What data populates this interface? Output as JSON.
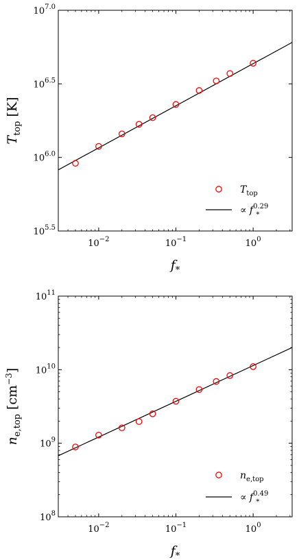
{
  "chart_data": [
    {
      "type": "scatter",
      "id": "temperature",
      "xlabel": {
        "base": "f",
        "sub": "*"
      },
      "ylabel": {
        "base": "T",
        "sub": "top",
        "unit": "[K]"
      },
      "x_scale": "log",
      "y_scale": "log",
      "xlim": [
        0.003,
        3.2
      ],
      "ylim": [
        316227.77,
        10000000
      ],
      "x_ticks": [
        {
          "value": 0.01,
          "base": "10",
          "exp": "−2"
        },
        {
          "value": 0.1,
          "base": "10",
          "exp": "−1"
        },
        {
          "value": 1,
          "base": "10",
          "exp": "0"
        }
      ],
      "y_ticks": [
        {
          "value": 316227.77,
          "base": "10",
          "exp": "5.5"
        },
        {
          "value": 1000000,
          "base": "10",
          "exp": "6.0"
        },
        {
          "value": 3162277.66,
          "base": "10",
          "exp": "6.5"
        },
        {
          "value": 10000000,
          "base": "10",
          "exp": "7.0"
        }
      ],
      "series": [
        {
          "kind": "points",
          "legend": {
            "base": "T",
            "sub": "top",
            "sup": ""
          },
          "x": [
            0.005,
            0.01,
            0.02,
            0.0333,
            0.05,
            0.1,
            0.2,
            0.333,
            0.5,
            1.0
          ],
          "y": [
            912000,
            1188000,
            1445000,
            1679000,
            1862000,
            2291000,
            2851000,
            3311000,
            3715000,
            4365000
          ]
        },
        {
          "kind": "line",
          "legend": {
            "base": "∝ f",
            "sub": "*",
            "sup": "0.29"
          },
          "x": [
            0.003,
            3.2
          ],
          "y": [
            823200,
            6049000
          ]
        }
      ],
      "legend_position": "bottom-right",
      "marker_color": "#ff0000",
      "line_color": "#000000",
      "grid": false
    },
    {
      "type": "scatter",
      "id": "density",
      "xlabel": {
        "base": "f",
        "sub": "*"
      },
      "ylabel": {
        "base": "n",
        "sub": "e,top",
        "unit": "[cm",
        "unit_sup": "−3",
        "unit_end": "]"
      },
      "x_scale": "log",
      "y_scale": "log",
      "xlim": [
        0.003,
        3.2
      ],
      "ylim": [
        100000000,
        100000000000
      ],
      "x_ticks": [
        {
          "value": 0.01,
          "base": "10",
          "exp": "−2"
        },
        {
          "value": 0.1,
          "base": "10",
          "exp": "−1"
        },
        {
          "value": 1,
          "base": "10",
          "exp": "0"
        }
      ],
      "y_ticks": [
        {
          "value": 100000000,
          "base": "10",
          "exp": "8"
        },
        {
          "value": 1000000000,
          "base": "10",
          "exp": "9"
        },
        {
          "value": 10000000000,
          "base": "10",
          "exp": "10"
        },
        {
          "value": 100000000000,
          "base": "10",
          "exp": "11"
        }
      ],
      "series": [
        {
          "kind": "points",
          "legend": {
            "base": "n",
            "sub": "e,top",
            "sup": ""
          },
          "x": [
            0.005,
            0.01,
            0.02,
            0.0333,
            0.05,
            0.1,
            0.2,
            0.333,
            0.5,
            1.0
          ],
          "y": [
            890000000,
            1290000000,
            1620000000,
            1970000000,
            2510000000,
            3720000000,
            5370000000,
            6920000000,
            8320000000,
            11000000000
          ]
        },
        {
          "kind": "line",
          "legend": {
            "base": "∝ f",
            "sub": "*",
            "sup": "0.49"
          },
          "x": [
            0.003,
            3.2
          ],
          "y": [
            676000000,
            20000000000
          ]
        }
      ],
      "legend_position": "bottom-right",
      "marker_color": "#ff0000",
      "line_color": "#000000",
      "grid": false
    }
  ]
}
